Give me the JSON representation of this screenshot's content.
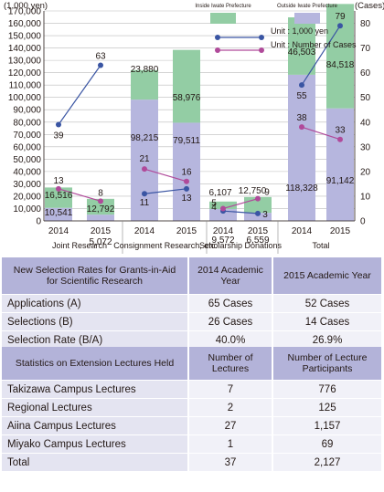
{
  "chart_data": {
    "type": "bar",
    "y_left_label": "(1,000 yen)",
    "y_right_label": "(Cases)",
    "y_left_range": [
      0,
      170000
    ],
    "y_left_ticks": [
      "0",
      "10,000",
      "20,000",
      "30,000",
      "40,000",
      "50,000",
      "60,000",
      "70,000",
      "80,000",
      "90,000",
      "100,000",
      "110,000",
      "120,000",
      "130,000",
      "140,000",
      "150,000",
      "160,000",
      "170,000"
    ],
    "y_right_range": [
      0,
      85
    ],
    "y_right_ticks": [
      "0",
      "10",
      "20",
      "30",
      "40",
      "50",
      "60",
      "70",
      "80"
    ],
    "legend": {
      "inside_label": "Inside Iwate Prefecture",
      "outside_label": "Outside Iwate Prefecture",
      "amount_label": "Unit : 1,000 yen",
      "cases_label": "Unit : Number of Cases"
    },
    "groups": [
      {
        "name": "Joint Research",
        "years": [
          "2014",
          "2015"
        ]
      },
      {
        "name": "Consignment Research, etc.",
        "years": [
          "2014",
          "2015"
        ]
      },
      {
        "name": "Scholarship Donations",
        "years": [
          "2014",
          "2015"
        ]
      },
      {
        "name": "Total",
        "years": [
          "2014",
          "2015"
        ]
      }
    ],
    "series": [
      {
        "name": "Inside Iwate Prefecture",
        "values": [
          16516,
          12792,
          23880,
          58976,
          6107,
          12750,
          46503,
          84518
        ],
        "labels": [
          "16,516",
          "12,792",
          "23,880",
          "58,976",
          "6,107",
          "12,750",
          "46,503",
          "84,518"
        ]
      },
      {
        "name": "Outside Iwate Prefecture",
        "values": [
          10541,
          5072,
          98215,
          79511,
          9572,
          6559,
          118328,
          91142
        ],
        "labels": [
          "10,541",
          "5,072",
          "98,215",
          "79,511",
          "9,572",
          "6,559",
          "118,328",
          "91,142"
        ]
      },
      {
        "name": "Unit : 1,000 yen",
        "values": [
          39,
          63,
          11,
          13,
          4,
          3,
          55,
          79
        ],
        "labels": [
          "39",
          "63",
          "11",
          "13",
          "4",
          "3",
          "55",
          "79"
        ]
      },
      {
        "name": "Unit : Number of Cases",
        "values": [
          13,
          8,
          21,
          16,
          5,
          9,
          38,
          33
        ],
        "labels": [
          "13",
          "8",
          "21",
          "16",
          "5",
          "9",
          "38",
          "33"
        ]
      }
    ],
    "colors": {
      "inside": "#93cda4",
      "outside": "#b6b6de",
      "amount_line": "#3a55a3",
      "cases_line": "#b04a9a",
      "grid": "#bbbbbb"
    }
  },
  "grants_table": {
    "header": [
      "New Selection Rates for Grants-in-Aid for Scientific Research",
      "2014 Academic Year",
      "2015 Academic Year"
    ],
    "rows": [
      [
        "Applications (A)",
        "65 Cases",
        "52 Cases"
      ],
      [
        "Selections (B)",
        "26 Cases",
        "14 Cases"
      ],
      [
        "Selection Rate (B/A)",
        "40.0%",
        "26.9%"
      ]
    ]
  },
  "lectures_table": {
    "header": [
      "Statistics on Extension Lectures Held",
      "Number of Lectures",
      "Number of Lecture Participants"
    ],
    "rows": [
      [
        "Takizawa Campus Lectures",
        "7",
        "776"
      ],
      [
        "Regional Lectures",
        "2",
        "125"
      ],
      [
        "Aiina Campus Lectures",
        "27",
        "1,157"
      ],
      [
        "Miyako Campus Lectures",
        "1",
        "69"
      ],
      [
        "Total",
        "37",
        "2,127"
      ]
    ]
  }
}
